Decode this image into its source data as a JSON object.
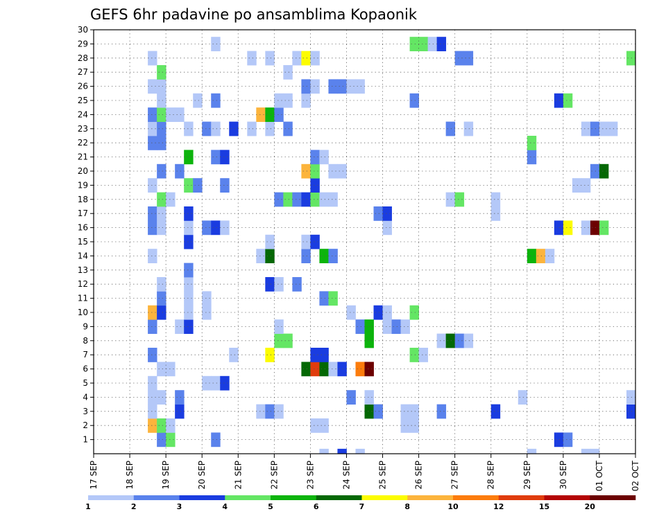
{
  "chart_data": {
    "type": "heatmap",
    "title": "GEFS 6hr padavine po ansamblima Kopaonik",
    "xlabel": "",
    "ylabel": "",
    "x_ticks": [
      "17 SEP",
      "18 SEP",
      "19 SEP",
      "20 SEP",
      "21 SEP",
      "22 SEP",
      "23 SEP",
      "24 SEP",
      "25 SEP",
      "26 SEP",
      "27 SEP",
      "28 SEP",
      "29 SEP",
      "30 SEP",
      "01 OCT",
      "02 OCT"
    ],
    "x_range": [
      0,
      60
    ],
    "y_ticks": [
      1,
      2,
      3,
      4,
      5,
      6,
      7,
      8,
      9,
      10,
      11,
      12,
      13,
      14,
      15,
      16,
      17,
      18,
      19,
      20,
      21,
      22,
      23,
      24,
      25,
      26,
      27,
      28,
      29,
      30
    ],
    "y_range": [
      0,
      30
    ],
    "grid": true,
    "colorbar": {
      "ticks": [
        "1",
        "2",
        "3",
        "4",
        "5",
        "6",
        "7",
        "8",
        "10",
        "12",
        "15",
        "20"
      ],
      "colors": [
        "#b4c8f8",
        "#5a82ec",
        "#1a3ce0",
        "#64e664",
        "#0cb40c",
        "#046804",
        "#fcfc00",
        "#fcb43c",
        "#fc7c0c",
        "#e03c0c",
        "#b40404",
        "#6c0000"
      ]
    },
    "cells": [
      [
        7,
        1,
        "#5a82ec"
      ],
      [
        8,
        1,
        "#64e664"
      ],
      [
        13,
        1,
        "#5a82ec"
      ],
      [
        51,
        1,
        "#1a3ce0"
      ],
      [
        52,
        1,
        "#5a82ec"
      ],
      [
        6,
        2,
        "#fcb43c"
      ],
      [
        7,
        2,
        "#64e664"
      ],
      [
        8,
        2,
        "#b4c8f8"
      ],
      [
        24,
        2,
        "#b4c8f8"
      ],
      [
        25,
        2,
        "#b4c8f8"
      ],
      [
        34,
        2,
        "#b4c8f8"
      ],
      [
        35,
        2,
        "#b4c8f8"
      ],
      [
        6,
        3,
        "#b4c8f8"
      ],
      [
        9,
        3,
        "#1a3ce0"
      ],
      [
        18,
        3,
        "#b4c8f8"
      ],
      [
        19,
        3,
        "#5a82ec"
      ],
      [
        20,
        3,
        "#b4c8f8"
      ],
      [
        30,
        3,
        "#046804"
      ],
      [
        31,
        3,
        "#5a82ec"
      ],
      [
        34,
        3,
        "#b4c8f8"
      ],
      [
        35,
        3,
        "#b4c8f8"
      ],
      [
        38,
        3,
        "#5a82ec"
      ],
      [
        44,
        3,
        "#1a3ce0"
      ],
      [
        59,
        3,
        "#1a3ce0"
      ],
      [
        6,
        4,
        "#b4c8f8"
      ],
      [
        7,
        4,
        "#b4c8f8"
      ],
      [
        9,
        4,
        "#5a82ec"
      ],
      [
        28,
        4,
        "#5a82ec"
      ],
      [
        30,
        4,
        "#b4c8f8"
      ],
      [
        47,
        4,
        "#b4c8f8"
      ],
      [
        59,
        4,
        "#b4c8f8"
      ],
      [
        6,
        5,
        "#b4c8f8"
      ],
      [
        12,
        5,
        "#b4c8f8"
      ],
      [
        13,
        5,
        "#b4c8f8"
      ],
      [
        14,
        5,
        "#1a3ce0"
      ],
      [
        7,
        6,
        "#b4c8f8"
      ],
      [
        8,
        6,
        "#b4c8f8"
      ],
      [
        23,
        6,
        "#046804"
      ],
      [
        24,
        6,
        "#e03c0c"
      ],
      [
        25,
        6,
        "#046804"
      ],
      [
        26,
        6,
        "#b4c8f8"
      ],
      [
        27,
        6,
        "#1a3ce0"
      ],
      [
        29,
        6,
        "#fc7c0c"
      ],
      [
        30,
        6,
        "#6c0000"
      ],
      [
        6,
        7,
        "#5a82ec"
      ],
      [
        15,
        7,
        "#b4c8f8"
      ],
      [
        19,
        7,
        "#fcfc00"
      ],
      [
        24,
        7,
        "#1a3ce0"
      ],
      [
        25,
        7,
        "#1a3ce0"
      ],
      [
        35,
        7,
        "#64e664"
      ],
      [
        36,
        7,
        "#b4c8f8"
      ],
      [
        20,
        8,
        "#64e664"
      ],
      [
        21,
        8,
        "#64e664"
      ],
      [
        30,
        8,
        "#0cb40c"
      ],
      [
        38,
        8,
        "#b4c8f8"
      ],
      [
        39,
        8,
        "#046804"
      ],
      [
        40,
        8,
        "#5a82ec"
      ],
      [
        41,
        8,
        "#b4c8f8"
      ],
      [
        6,
        9,
        "#5a82ec"
      ],
      [
        9,
        9,
        "#b4c8f8"
      ],
      [
        10,
        9,
        "#1a3ce0"
      ],
      [
        20,
        9,
        "#b4c8f8"
      ],
      [
        29,
        9,
        "#5a82ec"
      ],
      [
        30,
        9,
        "#0cb40c"
      ],
      [
        32,
        9,
        "#b4c8f8"
      ],
      [
        33,
        9,
        "#5a82ec"
      ],
      [
        34,
        9,
        "#b4c8f8"
      ],
      [
        6,
        10,
        "#fcb43c"
      ],
      [
        7,
        10,
        "#1a3ce0"
      ],
      [
        10,
        10,
        "#b4c8f8"
      ],
      [
        12,
        10,
        "#b4c8f8"
      ],
      [
        28,
        10,
        "#b4c8f8"
      ],
      [
        31,
        10,
        "#1a3ce0"
      ],
      [
        32,
        10,
        "#b4c8f8"
      ],
      [
        35,
        10,
        "#64e664"
      ],
      [
        7,
        11,
        "#5a82ec"
      ],
      [
        10,
        11,
        "#b4c8f8"
      ],
      [
        12,
        11,
        "#b4c8f8"
      ],
      [
        25,
        11,
        "#5a82ec"
      ],
      [
        26,
        11,
        "#64e664"
      ],
      [
        7,
        12,
        "#b4c8f8"
      ],
      [
        10,
        12,
        "#b4c8f8"
      ],
      [
        19,
        12,
        "#1a3ce0"
      ],
      [
        20,
        12,
        "#b4c8f8"
      ],
      [
        22,
        12,
        "#5a82ec"
      ],
      [
        10,
        13,
        "#5a82ec"
      ],
      [
        6,
        14,
        "#b4c8f8"
      ],
      [
        18,
        14,
        "#b4c8f8"
      ],
      [
        19,
        14,
        "#046804"
      ],
      [
        23,
        14,
        "#5a82ec"
      ],
      [
        25,
        14,
        "#0cb40c"
      ],
      [
        26,
        14,
        "#5a82ec"
      ],
      [
        48,
        14,
        "#0cb40c"
      ],
      [
        49,
        14,
        "#fcb43c"
      ],
      [
        50,
        14,
        "#b4c8f8"
      ],
      [
        10,
        15,
        "#1a3ce0"
      ],
      [
        19,
        15,
        "#b4c8f8"
      ],
      [
        23,
        15,
        "#b4c8f8"
      ],
      [
        24,
        15,
        "#1a3ce0"
      ],
      [
        6,
        16,
        "#5a82ec"
      ],
      [
        7,
        16,
        "#b4c8f8"
      ],
      [
        10,
        16,
        "#b4c8f8"
      ],
      [
        12,
        16,
        "#5a82ec"
      ],
      [
        13,
        16,
        "#1a3ce0"
      ],
      [
        14,
        16,
        "#b4c8f8"
      ],
      [
        32,
        16,
        "#b4c8f8"
      ],
      [
        51,
        16,
        "#1a3ce0"
      ],
      [
        52,
        16,
        "#fcfc00"
      ],
      [
        54,
        16,
        "#b4c8f8"
      ],
      [
        55,
        16,
        "#6c0000"
      ],
      [
        56,
        16,
        "#64e664"
      ],
      [
        6,
        17,
        "#5a82ec"
      ],
      [
        7,
        17,
        "#b4c8f8"
      ],
      [
        10,
        17,
        "#1a3ce0"
      ],
      [
        31,
        17,
        "#5a82ec"
      ],
      [
        32,
        17,
        "#1a3ce0"
      ],
      [
        44,
        17,
        "#b4c8f8"
      ],
      [
        7,
        18,
        "#64e664"
      ],
      [
        8,
        18,
        "#b4c8f8"
      ],
      [
        20,
        18,
        "#5a82ec"
      ],
      [
        21,
        18,
        "#64e664"
      ],
      [
        22,
        18,
        "#5a82ec"
      ],
      [
        23,
        18,
        "#1a3ce0"
      ],
      [
        24,
        18,
        "#64e664"
      ],
      [
        25,
        18,
        "#b4c8f8"
      ],
      [
        26,
        18,
        "#b4c8f8"
      ],
      [
        39,
        18,
        "#b4c8f8"
      ],
      [
        40,
        18,
        "#64e664"
      ],
      [
        44,
        18,
        "#b4c8f8"
      ],
      [
        6,
        19,
        "#b4c8f8"
      ],
      [
        10,
        19,
        "#64e664"
      ],
      [
        11,
        19,
        "#5a82ec"
      ],
      [
        14,
        19,
        "#5a82ec"
      ],
      [
        24,
        19,
        "#1a3ce0"
      ],
      [
        53,
        19,
        "#b4c8f8"
      ],
      [
        54,
        19,
        "#b4c8f8"
      ],
      [
        7,
        20,
        "#5a82ec"
      ],
      [
        9,
        20,
        "#5a82ec"
      ],
      [
        23,
        20,
        "#fcb43c"
      ],
      [
        24,
        20,
        "#64e664"
      ],
      [
        26,
        20,
        "#b4c8f8"
      ],
      [
        27,
        20,
        "#b4c8f8"
      ],
      [
        55,
        20,
        "#5a82ec"
      ],
      [
        56,
        20,
        "#046804"
      ],
      [
        10,
        21,
        "#0cb40c"
      ],
      [
        13,
        21,
        "#5a82ec"
      ],
      [
        14,
        21,
        "#1a3ce0"
      ],
      [
        24,
        21,
        "#5a82ec"
      ],
      [
        25,
        21,
        "#b4c8f8"
      ],
      [
        48,
        21,
        "#5a82ec"
      ],
      [
        6,
        22,
        "#5a82ec"
      ],
      [
        7,
        22,
        "#5a82ec"
      ],
      [
        48,
        22,
        "#64e664"
      ],
      [
        6,
        23,
        "#b4c8f8"
      ],
      [
        7,
        23,
        "#5a82ec"
      ],
      [
        10,
        23,
        "#b4c8f8"
      ],
      [
        12,
        23,
        "#5a82ec"
      ],
      [
        13,
        23,
        "#b4c8f8"
      ],
      [
        15,
        23,
        "#1a3ce0"
      ],
      [
        17,
        23,
        "#b4c8f8"
      ],
      [
        19,
        23,
        "#b4c8f8"
      ],
      [
        21,
        23,
        "#5a82ec"
      ],
      [
        39,
        23,
        "#5a82ec"
      ],
      [
        41,
        23,
        "#b4c8f8"
      ],
      [
        54,
        23,
        "#b4c8f8"
      ],
      [
        55,
        23,
        "#5a82ec"
      ],
      [
        56,
        23,
        "#b4c8f8"
      ],
      [
        57,
        23,
        "#b4c8f8"
      ],
      [
        6,
        24,
        "#5a82ec"
      ],
      [
        7,
        24,
        "#64e664"
      ],
      [
        8,
        24,
        "#b4c8f8"
      ],
      [
        9,
        24,
        "#b4c8f8"
      ],
      [
        18,
        24,
        "#fcb43c"
      ],
      [
        19,
        24,
        "#0cb40c"
      ],
      [
        20,
        24,
        "#5a82ec"
      ],
      [
        7,
        25,
        "#b4c8f8"
      ],
      [
        11,
        25,
        "#b4c8f8"
      ],
      [
        13,
        25,
        "#5a82ec"
      ],
      [
        20,
        25,
        "#b4c8f8"
      ],
      [
        21,
        25,
        "#b4c8f8"
      ],
      [
        23,
        25,
        "#b4c8f8"
      ],
      [
        35,
        25,
        "#5a82ec"
      ],
      [
        51,
        25,
        "#1a3ce0"
      ],
      [
        52,
        25,
        "#64e664"
      ],
      [
        6,
        26,
        "#b4c8f8"
      ],
      [
        7,
        26,
        "#b4c8f8"
      ],
      [
        23,
        26,
        "#5a82ec"
      ],
      [
        24,
        26,
        "#b4c8f8"
      ],
      [
        26,
        26,
        "#5a82ec"
      ],
      [
        27,
        26,
        "#5a82ec"
      ],
      [
        28,
        26,
        "#b4c8f8"
      ],
      [
        29,
        26,
        "#b4c8f8"
      ],
      [
        7,
        27,
        "#64e664"
      ],
      [
        21,
        27,
        "#b4c8f8"
      ],
      [
        6,
        28,
        "#b4c8f8"
      ],
      [
        17,
        28,
        "#b4c8f8"
      ],
      [
        19,
        28,
        "#b4c8f8"
      ],
      [
        22,
        28,
        "#b4c8f8"
      ],
      [
        23,
        28,
        "#fcfc00"
      ],
      [
        24,
        28,
        "#b4c8f8"
      ],
      [
        40,
        28,
        "#5a82ec"
      ],
      [
        41,
        28,
        "#5a82ec"
      ],
      [
        59,
        28,
        "#64e664"
      ],
      [
        13,
        29,
        "#b4c8f8"
      ],
      [
        35,
        29,
        "#64e664"
      ],
      [
        36,
        29,
        "#64e664"
      ],
      [
        37,
        29,
        "#b4c8f8"
      ],
      [
        38,
        29,
        "#1a3ce0"
      ]
    ],
    "below_axis_cells": [
      [
        25,
        "#b4c8f8"
      ],
      [
        27,
        "#1a3ce0"
      ],
      [
        29,
        "#b4c8f8"
      ],
      [
        48,
        "#b4c8f8"
      ],
      [
        54,
        "#b4c8f8"
      ],
      [
        55,
        "#b4c8f8"
      ]
    ]
  }
}
